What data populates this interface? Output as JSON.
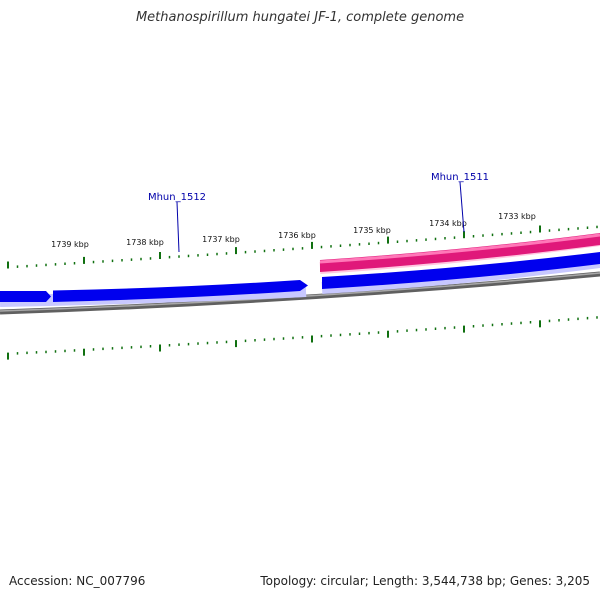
{
  "title": "Methanospirillum hungatei JF-1, complete genome",
  "footer": {
    "accession": "Accession: NC_007796",
    "summary": "Topology: circular; Length: 3,544,738 bp; Genes: 3,205"
  },
  "colors": {
    "forward_gene": "#0000ee",
    "highlight_gene": "#e0187a",
    "backbone": "#808080",
    "ticks": "#107010",
    "gene_label": "#0000aa"
  },
  "scale_labels": [
    "1733 kbp",
    "1734 kbp",
    "1735 kbp",
    "1736 kbp",
    "1737 kbp",
    "1738 kbp",
    "1739 kbp"
  ],
  "gene_labels": [
    "Mhun_1511",
    "Mhun_1512"
  ]
}
